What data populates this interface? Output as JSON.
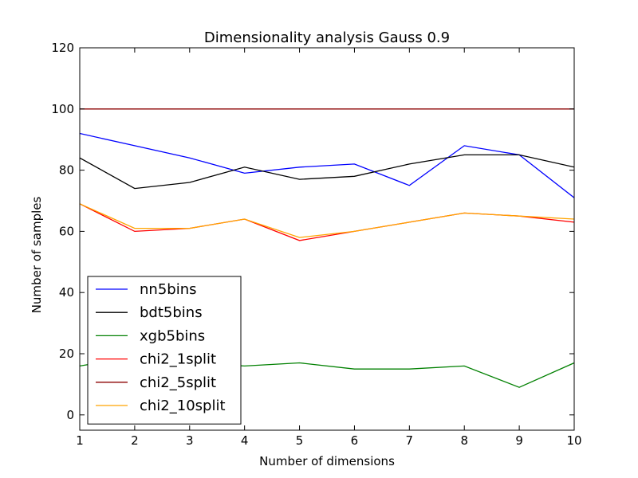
{
  "chart_data": {
    "type": "line",
    "title": "Dimensionality analysis Gauss 0.9",
    "xlabel": "Number of dimensions",
    "ylabel": "Number of samples",
    "xlim": [
      1,
      10
    ],
    "ylim": [
      -5,
      120
    ],
    "x": [
      1,
      2,
      3,
      4,
      5,
      6,
      7,
      8,
      9,
      10
    ],
    "xticks": [
      1,
      2,
      3,
      4,
      5,
      6,
      7,
      8,
      9,
      10
    ],
    "yticks": [
      0,
      20,
      40,
      60,
      80,
      100,
      120
    ],
    "grid": false,
    "legend_position": "lower-left",
    "series": [
      {
        "name": "nn5bins",
        "color": "#0000ff",
        "values": [
          92,
          88,
          84,
          79,
          81,
          82,
          75,
          88,
          85,
          71
        ]
      },
      {
        "name": "bdt5bins",
        "color": "#000000",
        "values": [
          84,
          74,
          76,
          81,
          77,
          78,
          82,
          85,
          85,
          81
        ]
      },
      {
        "name": "xgb5bins",
        "color": "#008000",
        "values": [
          16,
          19,
          17,
          16,
          17,
          15,
          15,
          16,
          9,
          17
        ]
      },
      {
        "name": "chi2_1split",
        "color": "#ff0000",
        "values": [
          69,
          60,
          61,
          64,
          57,
          60,
          63,
          66,
          65,
          63
        ]
      },
      {
        "name": "chi2_5split",
        "color": "#8b0000",
        "values": [
          100,
          100,
          100,
          100,
          100,
          100,
          100,
          100,
          100,
          100
        ]
      },
      {
        "name": "chi2_10split",
        "color": "#ffa500",
        "values": [
          69,
          61,
          61,
          64,
          58,
          60,
          63,
          66,
          65,
          64
        ]
      }
    ]
  }
}
